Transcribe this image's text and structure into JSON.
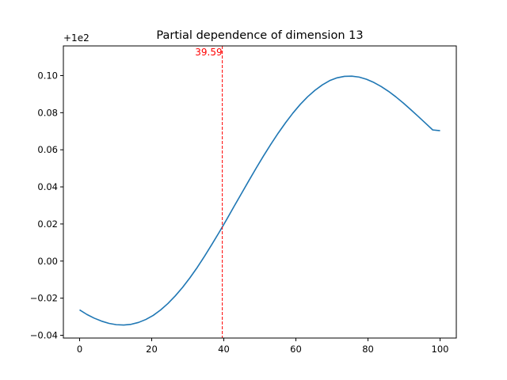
{
  "chart_data": {
    "type": "line",
    "title": "Partial dependence of dimension 13",
    "offset_label": "+1e2",
    "xlabel": "",
    "ylabel": "",
    "xlim": [
      -4.5,
      104.5
    ],
    "ylim": [
      -0.0415,
      0.116
    ],
    "x_ticks": [
      0,
      20,
      40,
      60,
      80,
      100
    ],
    "y_ticks": [
      -0.04,
      -0.02,
      0.0,
      0.02,
      0.04,
      0.06,
      0.08,
      0.1
    ],
    "x_tick_labels": [
      "0",
      "20",
      "40",
      "60",
      "80",
      "100"
    ],
    "y_tick_labels": [
      "−0.04",
      "−0.02",
      "0.00",
      "0.02",
      "0.04",
      "0.06",
      "0.08",
      "0.10"
    ],
    "grid": false,
    "line_color": "#1f77b4",
    "marker_color": "#ff0000",
    "series": [
      {
        "x": [
          0,
          2.04,
          4.08,
          6.12,
          8.16,
          10.2,
          12.24,
          14.29,
          16.33,
          18.37,
          20.41,
          22.45,
          24.49,
          26.53,
          28.57,
          30.61,
          32.65,
          34.69,
          36.73,
          38.78,
          40.82,
          42.86,
          44.9,
          46.94,
          48.98,
          51.02,
          53.06,
          55.1,
          57.14,
          59.18,
          61.22,
          63.27,
          65.31,
          67.35,
          69.39,
          71.43,
          73.47,
          75.51,
          77.55,
          79.59,
          81.63,
          83.67,
          85.71,
          87.76,
          89.8,
          91.84,
          93.88,
          95.92,
          97.96,
          100
        ],
        "y": [
          -0.0263,
          -0.0288,
          -0.0308,
          -0.0324,
          -0.0336,
          -0.0343,
          -0.0345,
          -0.0341,
          -0.0331,
          -0.0315,
          -0.0293,
          -0.0264,
          -0.0229,
          -0.0188,
          -0.0142,
          -0.009,
          -0.0034,
          0.0027,
          0.0091,
          0.0157,
          0.0225,
          0.0295,
          0.0364,
          0.0433,
          0.0501,
          0.0567,
          0.063,
          0.069,
          0.0746,
          0.0798,
          0.0845,
          0.0886,
          0.0921,
          0.095,
          0.0973,
          0.0988,
          0.0996,
          0.0997,
          0.0992,
          0.098,
          0.0963,
          0.0941,
          0.0915,
          0.0885,
          0.0852,
          0.0817,
          0.0781,
          0.0744,
          0.0707,
          0.0703
        ]
      }
    ],
    "annotations": [
      {
        "type": "vline",
        "x": 39.59,
        "label": "39.59",
        "color": "#ff0000",
        "style": "dashed"
      }
    ]
  }
}
